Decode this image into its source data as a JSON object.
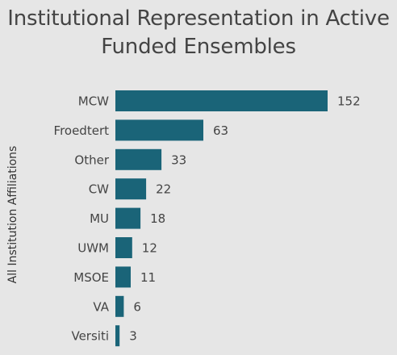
{
  "chart_data": {
    "type": "bar",
    "orientation": "horizontal",
    "title_lines": [
      "Institutional Representation in Active",
      "Funded Ensembles"
    ],
    "ylabel": "All Institution Affiliations",
    "xlabel": "",
    "categories": [
      "MCW",
      "Froedtert",
      "Other",
      "CW",
      "MU",
      "UWM",
      "MSOE",
      "VA",
      "Versiti"
    ],
    "values": [
      152,
      63,
      33,
      22,
      18,
      12,
      11,
      6,
      3
    ],
    "data_labels": [
      "152",
      "63",
      "33",
      "22",
      "18",
      "12",
      "11",
      "6",
      "3"
    ],
    "xlim": [
      0,
      152
    ],
    "grid": false,
    "legend": "none",
    "bar_color": "#1a6478",
    "text_color": "#444444"
  }
}
